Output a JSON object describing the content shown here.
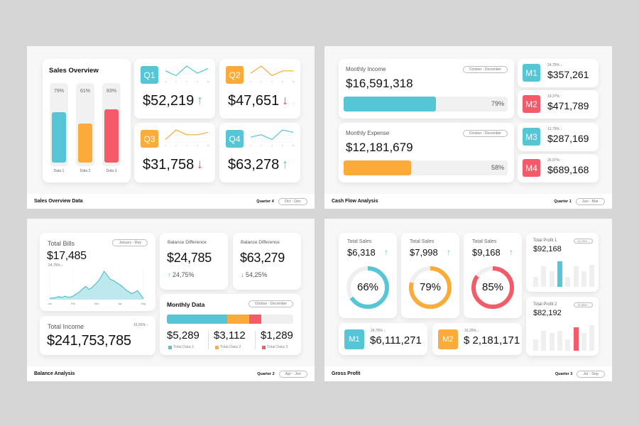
{
  "colors": {
    "teal": "#56c5d6",
    "orange": "#fbab3a",
    "red": "#f45a68",
    "track": "#efefef"
  },
  "slide1": {
    "sales_overview": {
      "title": "Sales Overview",
      "bars": [
        {
          "label": "Data 1",
          "pct": "79%",
          "value": 79,
          "color": "teal"
        },
        {
          "label": "Data 2",
          "pct": "61%",
          "value": 61,
          "color": "orange"
        },
        {
          "label": "Data 3",
          "pct": "83%",
          "value": 83,
          "color": "red"
        }
      ]
    },
    "quarters": [
      {
        "badge": "Q1",
        "value": "$52,219",
        "trend": "up",
        "arrow": "↑",
        "color": "teal",
        "series": [
          3,
          1,
          5,
          2,
          4
        ]
      },
      {
        "badge": "Q2",
        "value": "$47,651",
        "trend": "down",
        "arrow": "↓",
        "color": "orange",
        "series": [
          2,
          5,
          1,
          3,
          3
        ]
      },
      {
        "badge": "Q3",
        "value": "$31,758",
        "trend": "down",
        "arrow": "↓",
        "color": "orange",
        "series": [
          1,
          5,
          3,
          3,
          4
        ]
      },
      {
        "badge": "Q4",
        "value": "$63,278",
        "trend": "up",
        "arrow": "↑",
        "color": "teal",
        "series": [
          2,
          3,
          1,
          5,
          4
        ]
      }
    ],
    "mini_x_labels": [
      "0",
      "2",
      "4",
      "8",
      "10"
    ],
    "footer": {
      "title": "Sales Overview Data",
      "quarter": "Quarter 4",
      "range": "Oct - Dec"
    }
  },
  "slide2": {
    "income": {
      "label": "Monthly Income",
      "range": "October - December",
      "value": "$16,591,318",
      "pct": "79%",
      "fill": 79
    },
    "expense": {
      "label": "Monthly Expense",
      "range": "October - December",
      "value": "$12,181,679",
      "pct": "58%",
      "fill": 58
    },
    "months": [
      {
        "badge": "M1",
        "change": "24,75%",
        "arrow": "↓",
        "trend": "down",
        "value": "$357,261",
        "color": "teal"
      },
      {
        "badge": "M2",
        "change": "19,37%",
        "arrow": "↑",
        "trend": "up",
        "value": "$471,789",
        "color": "red"
      },
      {
        "badge": "M3",
        "change": "12,79%",
        "arrow": "↓",
        "trend": "down",
        "value": "$287,169",
        "color": "teal"
      },
      {
        "badge": "M4",
        "change": "26,97%",
        "arrow": "↑",
        "trend": "up",
        "value": "$689,168",
        "color": "red"
      }
    ],
    "footer": {
      "title": "Cash Flow Analysis",
      "quarter": "Quarter 1",
      "range": "Jan - Mar"
    }
  },
  "slide3": {
    "bills": {
      "label": "Total Bills",
      "range": "January - May",
      "value": "$17,485",
      "change": "24,75%",
      "arrow": "↓",
      "x_labels": [
        "Jan",
        "Feb",
        "Mar",
        "Apr",
        "May"
      ],
      "series": [
        3,
        3,
        4,
        6,
        4,
        7,
        5,
        5,
        8,
        12,
        16,
        22,
        26,
        20,
        24,
        30,
        36,
        45,
        56,
        48,
        40,
        38,
        34,
        30,
        26,
        20,
        16,
        12,
        14,
        18,
        10,
        2
      ]
    },
    "income": {
      "label": "Total Income",
      "value": "$241,753,785",
      "change": "16,55%",
      "arrow": "↓"
    },
    "diff1": {
      "label": "Balance Difference",
      "value": "$24,785",
      "change": "24,75%",
      "arrow": "↑"
    },
    "diff2": {
      "label": "Balance Difference",
      "value": "$63,279",
      "change": "54,25%",
      "arrow": "↓"
    },
    "monthly": {
      "title": "Monthly Data",
      "range": "October - December",
      "items": [
        {
          "value": "$5,289",
          "label": "Total Data 1",
          "share": 48,
          "color": "teal"
        },
        {
          "value": "$3,112",
          "label": "Total Data 2",
          "share": 17,
          "color": "orange"
        },
        {
          "value": "$1,289",
          "label": "Total Data 3",
          "share": 10,
          "color": "red"
        }
      ]
    },
    "footer": {
      "title": "Balance Analysis",
      "quarter": "Quarter 2",
      "range": "Apr - Jun"
    }
  },
  "slide4": {
    "sales": [
      {
        "label": "Total Sales",
        "value": "$6,318",
        "arrow": "↑",
        "pct": "66%",
        "fill": 66,
        "color": "teal"
      },
      {
        "label": "Total Sales",
        "value": "$7,998",
        "arrow": "↑",
        "pct": "79%",
        "fill": 79,
        "color": "orange"
      },
      {
        "label": "Total Sales",
        "value": "$9,168",
        "arrow": "↑",
        "pct": "85%",
        "fill": 85,
        "color": "red"
      }
    ],
    "profits": [
      {
        "label": "Total Profit 1",
        "value": "$92,168",
        "change": "24,75%",
        "arrow": "↓",
        "bars": [
          40,
          80,
          60,
          100,
          40,
          80,
          60,
          85
        ],
        "highlight": 3,
        "color": "teal"
      },
      {
        "label": "Total Profit 2",
        "value": "$82,192",
        "change": "32,55%",
        "arrow": "↑",
        "bars": [
          50,
          85,
          75,
          85,
          50,
          100,
          75,
          110
        ],
        "highlight": 5,
        "color": "red"
      }
    ],
    "months": [
      {
        "badge": "M1",
        "change": "24,75%",
        "arrow": "↓",
        "value": "$6,111,271",
        "color": "teal"
      },
      {
        "badge": "M2",
        "change": "16,25%",
        "arrow": "↓",
        "value": "$ 2,181,171",
        "color": "orange"
      }
    ],
    "footer": {
      "title": "Gross Profit",
      "quarter": "Quarter 3",
      "range": "Jul - Sep"
    }
  }
}
